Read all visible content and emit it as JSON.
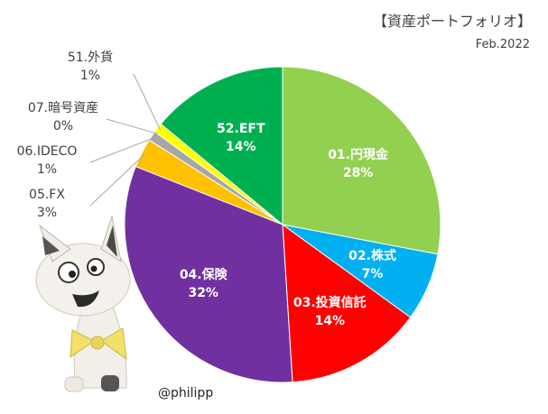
{
  "title": "【資産ポートフォリオ】",
  "subtitle": "Feb.2022",
  "credit": "@philipp",
  "chart_data": {
    "type": "pie",
    "title": "【資産ポートフォリオ】",
    "subtitle": "Feb.2022",
    "start_angle_deg": 0,
    "direction": "clockwise",
    "slices": [
      {
        "label": "01.円現金",
        "value": 28,
        "pct_label": "28%",
        "color": "#92D050",
        "label_pos": "inside"
      },
      {
        "label": "02.株式",
        "value": 7,
        "pct_label": "7%",
        "color": "#00B0F0",
        "label_pos": "inside"
      },
      {
        "label": "03.投資信託",
        "value": 14,
        "pct_label": "14%",
        "color": "#FF0000",
        "label_pos": "inside"
      },
      {
        "label": "04.保険",
        "value": 32,
        "pct_label": "32%",
        "color": "#7030A0",
        "label_pos": "inside"
      },
      {
        "label": "05.FX",
        "value": 3,
        "pct_label": "3%",
        "color": "#FFC000",
        "label_pos": "outside"
      },
      {
        "label": "06.IDECO",
        "value": 1,
        "pct_label": "1%",
        "color": "#A6A6A6",
        "label_pos": "outside"
      },
      {
        "label": "07.暗号資産",
        "value": 0,
        "pct_label": "0%",
        "color": "#FFFFFF",
        "label_pos": "outside"
      },
      {
        "label": "51.外貨",
        "value": 1,
        "pct_label": "1%",
        "color": "#FFFF00",
        "label_pos": "outside"
      },
      {
        "label": "52.EFT",
        "value": 14,
        "pct_label": "14%",
        "color": "#00B050",
        "label_pos": "inside"
      }
    ]
  },
  "illustration": {
    "icon": "cat-mascot-icon"
  }
}
